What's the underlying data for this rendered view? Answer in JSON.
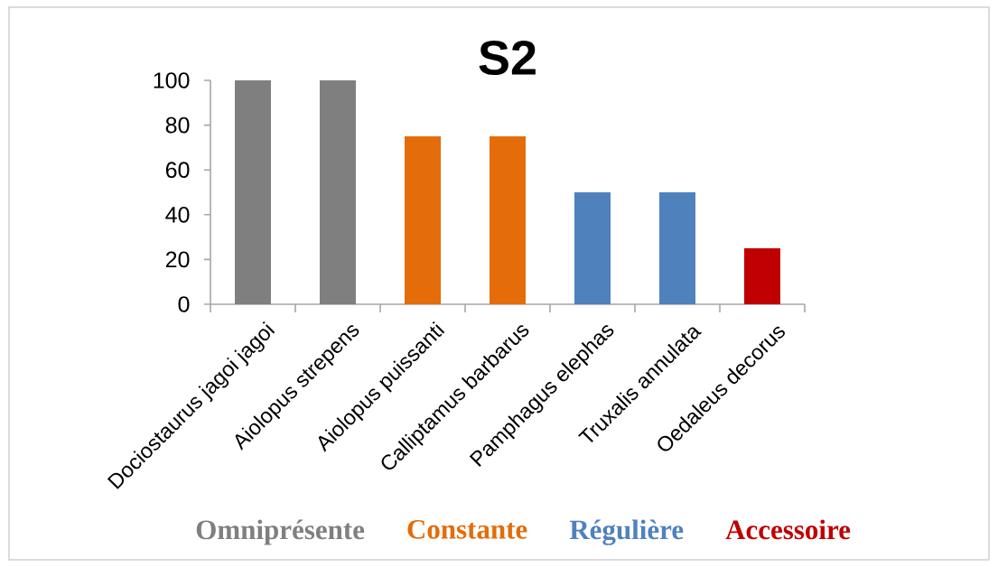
{
  "chart_data": {
    "type": "bar",
    "title": "S2",
    "categories": [
      "Dociostaurus jagoi jagoi",
      "Aiolopus strepens",
      "Aiolopus puissanti",
      "Calliptamus barbarus",
      "Pamphagus elephas",
      "Truxalis annulata",
      "Oedaleus decorus"
    ],
    "series": [
      {
        "name": "Omniprésente",
        "color": "#7f7f7f",
        "values": [
          100,
          100,
          null,
          null,
          null,
          null,
          null
        ]
      },
      {
        "name": "Constante",
        "color": "#e46c0a",
        "values": [
          null,
          null,
          75,
          75,
          null,
          null,
          null
        ]
      },
      {
        "name": "Régulière",
        "color": "#4f81bd",
        "values": [
          null,
          null,
          null,
          null,
          50,
          50,
          null
        ]
      },
      {
        "name": "Accessoire",
        "color": "#c00000",
        "values": [
          null,
          null,
          null,
          null,
          null,
          null,
          25
        ]
      }
    ],
    "stacked": true,
    "ylim": [
      0,
      100
    ],
    "yticks": [
      0,
      20,
      40,
      60,
      80,
      100
    ],
    "legend": "bottom"
  }
}
